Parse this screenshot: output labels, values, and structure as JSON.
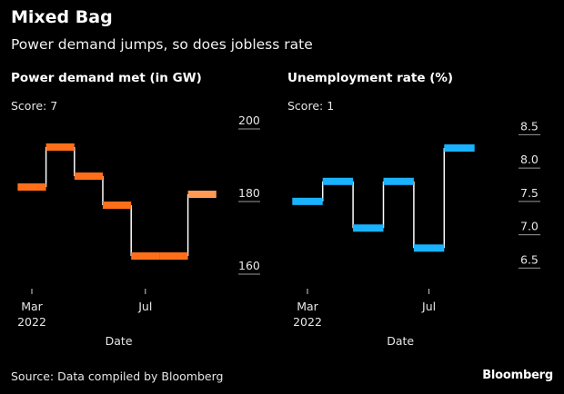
{
  "header": {
    "title": "Mixed Bag",
    "subtitle": "Power demand jumps, so does jobless rate"
  },
  "footer": {
    "source": "Source: Data compiled by Bloomberg",
    "brand": "Bloomberg"
  },
  "chart_data": [
    {
      "type": "line",
      "step": true,
      "title": "Power demand met (in GW)",
      "annotation": "Score: 7",
      "xlabel": "Date",
      "ylabel": "",
      "x": [
        "2022-02",
        "2022-03",
        "2022-04",
        "2022-05",
        "2022-06",
        "2022-07",
        "2022-08",
        "2022-09",
        "2022-10"
      ],
      "series": [
        {
          "name": "Power demand met",
          "color": "#ff6f1a",
          "highlight_color": "#ff9955",
          "highlight_index": 7,
          "values": [
            null,
            184,
            195,
            187,
            179,
            165,
            165,
            182,
            null
          ]
        }
      ],
      "x_ticks": [
        {
          "label": "Mar",
          "sub": "2022",
          "month": 3
        },
        {
          "label": "Jul",
          "sub": "",
          "month": 7
        }
      ],
      "y_ticks": [
        160,
        180,
        200
      ],
      "ylim": [
        158,
        203
      ],
      "xlim": [
        2,
        10
      ]
    },
    {
      "type": "line",
      "step": true,
      "title": "Unemployment rate (%)",
      "annotation": "Score: 1",
      "xlabel": "Date",
      "ylabel": "",
      "x": [
        "2022-02",
        "2022-03",
        "2022-04",
        "2022-05",
        "2022-06",
        "2022-07",
        "2022-08",
        "2022-09",
        "2022-10"
      ],
      "series": [
        {
          "name": "Unemployment rate",
          "color": "#1ab2ff",
          "values": [
            null,
            7.5,
            7.8,
            7.1,
            7.8,
            6.8,
            8.3,
            null,
            null
          ]
        }
      ],
      "x_ticks": [
        {
          "label": "Mar",
          "sub": "2022",
          "month": 3
        },
        {
          "label": "Jul",
          "sub": "",
          "month": 7
        }
      ],
      "y_ticks": [
        6.5,
        7.0,
        7.5,
        8.0,
        8.5
      ],
      "ylim": [
        6.3,
        8.75
      ],
      "xlim": [
        2,
        10
      ]
    }
  ]
}
